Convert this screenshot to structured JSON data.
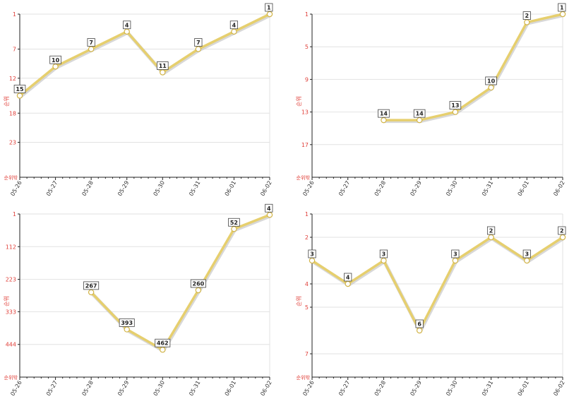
{
  "chart_data": [
    {
      "type": "line",
      "categories": [
        "05-26",
        "05-27",
        "05-28",
        "05-29",
        "05-30",
        "05-31",
        "06-01",
        "06-02"
      ],
      "values": [
        15,
        10,
        7,
        4,
        11,
        7,
        4,
        1
      ],
      "ylabel": "순위",
      "yticks": [
        1,
        7,
        12,
        18,
        23
      ],
      "ylim": [
        1,
        29
      ],
      "outside_label": "순위밖",
      "y_reversed": true,
      "grid": true,
      "line_color": "#e6cf6e"
    },
    {
      "type": "line",
      "categories": [
        "05-26",
        "05-27",
        "05-28",
        "05-29",
        "05-30",
        "05-31",
        "06-01",
        "06-02"
      ],
      "values": [
        null,
        null,
        14,
        14,
        13,
        10,
        2,
        1
      ],
      "ylabel": "순위",
      "yticks": [
        1,
        5,
        9,
        13,
        17
      ],
      "ylim": [
        1,
        21
      ],
      "outside_label": "순위밖",
      "y_reversed": true,
      "grid": true,
      "line_color": "#e6cf6e"
    },
    {
      "type": "line",
      "categories": [
        "05-26",
        "05-27",
        "05-28",
        "05-29",
        "05-30",
        "05-31",
        "06-01",
        "06-02"
      ],
      "values": [
        null,
        null,
        267,
        393,
        462,
        260,
        52,
        4
      ],
      "ylabel": "순위",
      "yticks": [
        1,
        112,
        223,
        333,
        444
      ],
      "ylim": [
        1,
        555
      ],
      "outside_label": "순위밖",
      "y_reversed": true,
      "grid": true,
      "line_color": "#e6cf6e"
    },
    {
      "type": "line",
      "categories": [
        "05-26",
        "05-27",
        "05-28",
        "05-29",
        "05-30",
        "05-31",
        "06-01",
        "06-02"
      ],
      "values": [
        3,
        4,
        3,
        6,
        3,
        2,
        3,
        2
      ],
      "ylabel": "순위",
      "yticks": [
        1,
        2,
        4,
        5,
        7
      ],
      "ylim": [
        1,
        8
      ],
      "outside_label": "순위밖",
      "y_reversed": true,
      "grid": true,
      "line_color": "#e6cf6e"
    }
  ]
}
